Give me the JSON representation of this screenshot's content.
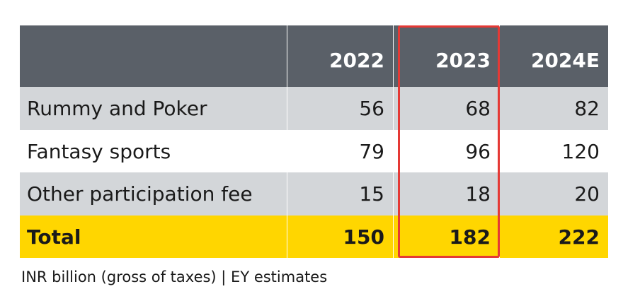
{
  "chart_data": {
    "type": "table",
    "columns": [
      "",
      "2022",
      "2023",
      "2024E"
    ],
    "rows": [
      {
        "label": "Rummy and Poker",
        "values": [
          "56",
          "68",
          "82"
        ]
      },
      {
        "label": "Fantasy sports",
        "values": [
          "79",
          "96",
          "120"
        ]
      },
      {
        "label": "Other participation fee",
        "values": [
          "15",
          "18",
          "20"
        ]
      },
      {
        "label": "Total",
        "values": [
          "150",
          "182",
          "222"
        ]
      }
    ],
    "highlighted_column": "2023",
    "footnote": "INR billion (gross of taxes) | EY estimates"
  },
  "colors": {
    "header_bg": "#5a6068",
    "row_grey": "#d3d6d9",
    "total_bg": "#ffd600",
    "highlight_border": "#e53935"
  }
}
